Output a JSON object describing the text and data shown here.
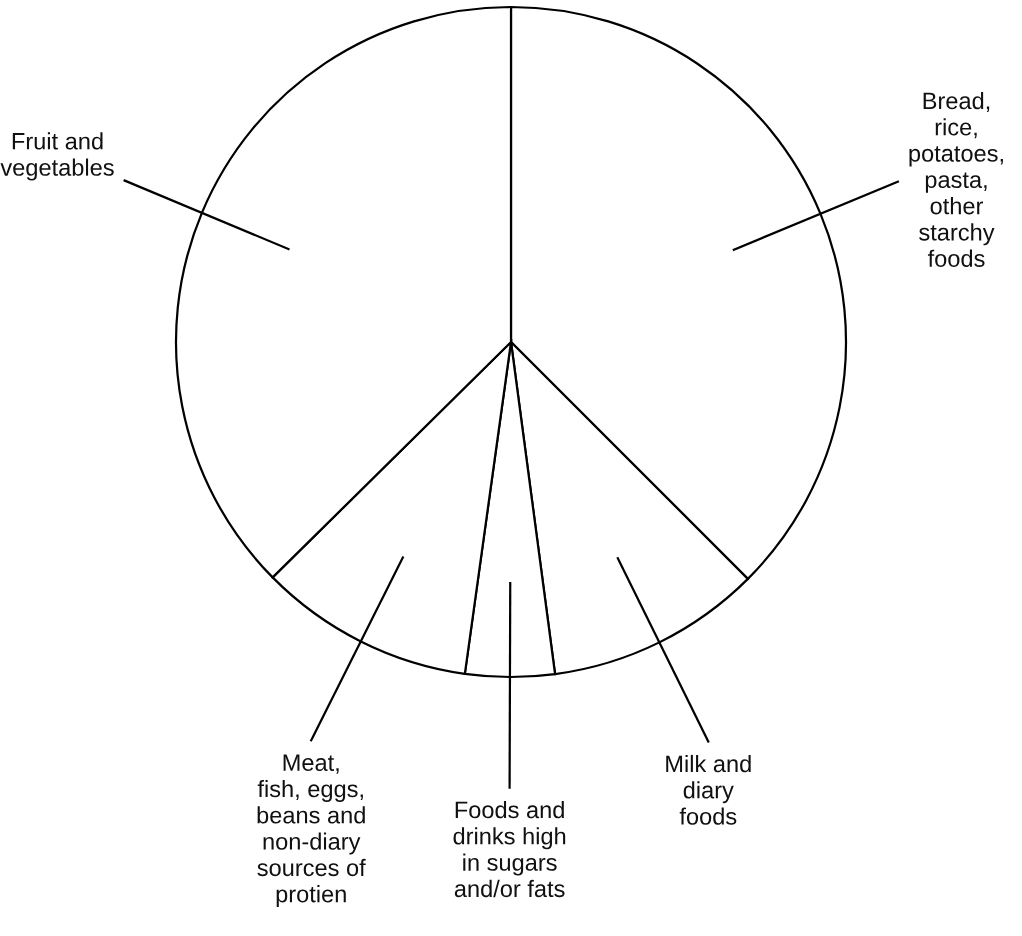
{
  "chart_data": {
    "type": "pie",
    "categories": [
      "Bread,\nrice,\npotatoes,\npasta,\nother\nstarchy\nfoods",
      "Milk and\ndiary\nfoods",
      "Foods and\ndrinks high\nin sugars\nand/or fats",
      "Meat,\nfish, eggs,\nbeans and\nnon-diary\nsources of\nprotien",
      "Fruit and\nvegetables"
    ],
    "values": [
      37.5,
      10.4,
      4.3,
      10.4,
      37.4
    ],
    "colors": [
      "#ffffff",
      "#ffffff",
      "#ffffff",
      "#ffffff",
      "#ffffff"
    ]
  }
}
